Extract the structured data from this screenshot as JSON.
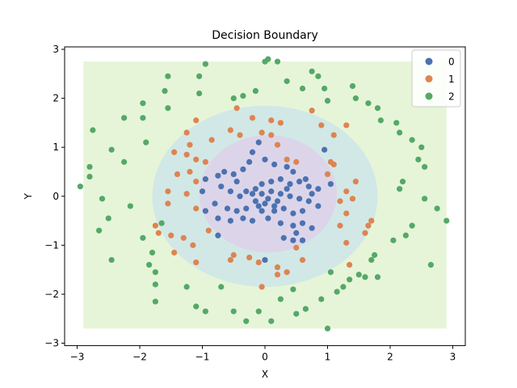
{
  "chart_data": {
    "type": "scatter",
    "title": "Decision Boundary",
    "xlabel": "X",
    "ylabel": "Y",
    "xlim": [
      -3.2,
      3.2
    ],
    "ylim": [
      -3.05,
      3.05
    ],
    "xticks": [
      -3,
      -2,
      -1,
      0,
      1,
      2,
      3
    ],
    "yticks": [
      -3,
      -2,
      -1,
      0,
      1,
      2,
      3
    ],
    "legend_position": "top-right",
    "grid": false,
    "decision_regions": [
      {
        "class": "2",
        "shape": "rect",
        "xmin": -2.9,
        "xmax": 2.9,
        "ymin": -2.7,
        "ymax": 2.75,
        "color": "#e6f5d8"
      },
      {
        "class": "1",
        "shape": "ellipse",
        "cx": 0.0,
        "cy": 0.0,
        "rx": 1.8,
        "ry": 1.85,
        "color": "#d2e8e6"
      },
      {
        "class": "0",
        "shape": "ellipse",
        "cx": 0.05,
        "cy": 0.05,
        "rx": 1.1,
        "ry": 1.2,
        "color": "#dcd5ea"
      }
    ],
    "series": [
      {
        "name": "0",
        "color": "#4c72b0",
        "points": [
          [
            -0.1,
            1.1
          ],
          [
            0.0,
            0.75
          ],
          [
            -0.2,
            0.9
          ],
          [
            0.15,
            0.65
          ],
          [
            0.35,
            0.6
          ],
          [
            0.45,
            0.5
          ],
          [
            -0.35,
            0.55
          ],
          [
            -0.5,
            0.45
          ],
          [
            -0.65,
            0.5
          ],
          [
            -0.75,
            0.42
          ],
          [
            -0.95,
            0.35
          ],
          [
            -0.7,
            0.2
          ],
          [
            -0.55,
            0.1
          ],
          [
            -0.4,
            0.0
          ],
          [
            -0.3,
            0.1
          ],
          [
            -0.15,
            0.15
          ],
          [
            -0.05,
            0.25
          ],
          [
            0.1,
            0.3
          ],
          [
            0.25,
            0.35
          ],
          [
            0.4,
            0.25
          ],
          [
            0.55,
            0.3
          ],
          [
            0.7,
            0.2
          ],
          [
            0.85,
            0.15
          ],
          [
            0.65,
            0.35
          ],
          [
            0.25,
            0.05
          ],
          [
            0.4,
            0.0
          ],
          [
            0.55,
            -0.05
          ],
          [
            0.7,
            -0.1
          ],
          [
            0.85,
            -0.2
          ],
          [
            0.6,
            -0.3
          ],
          [
            0.45,
            -0.35
          ],
          [
            0.3,
            -0.25
          ],
          [
            0.15,
            -0.2
          ],
          [
            0.0,
            -0.15
          ],
          [
            -0.15,
            -0.1
          ],
          [
            -0.3,
            -0.25
          ],
          [
            -0.45,
            -0.3
          ],
          [
            -0.6,
            -0.25
          ],
          [
            -0.8,
            -0.15
          ],
          [
            -0.95,
            -0.3
          ],
          [
            -0.75,
            -0.45
          ],
          [
            -0.55,
            -0.5
          ],
          [
            -0.35,
            -0.45
          ],
          [
            -0.2,
            -0.5
          ],
          [
            0.05,
            -0.45
          ],
          [
            0.25,
            -0.55
          ],
          [
            0.45,
            -0.6
          ],
          [
            0.6,
            -0.55
          ],
          [
            0.75,
            -0.65
          ],
          [
            0.5,
            -0.75
          ],
          [
            0.3,
            -0.85
          ],
          [
            0.45,
            -0.9
          ],
          [
            0.6,
            -0.9
          ],
          [
            -0.75,
            -0.8
          ],
          [
            -0.05,
            -0.3
          ],
          [
            0.05,
            -0.05
          ],
          [
            -0.05,
            0.05
          ],
          [
            0.1,
            0.1
          ],
          [
            -0.2,
            0.05
          ],
          [
            0.2,
            -0.1
          ],
          [
            -0.1,
            -0.2
          ],
          [
            0.15,
            -0.3
          ],
          [
            -1.0,
            0.1
          ],
          [
            1.05,
            0.25
          ],
          [
            0.95,
            0.95
          ],
          [
            0.0,
            -1.3
          ],
          [
            -0.25,
            0.7
          ],
          [
            -0.45,
            0.3
          ],
          [
            0.35,
            0.15
          ],
          [
            0.75,
            0.05
          ]
        ]
      },
      {
        "name": "1",
        "color": "#dd8452",
        "points": [
          [
            -0.45,
            1.8
          ],
          [
            -0.2,
            1.6
          ],
          [
            0.1,
            1.55
          ],
          [
            0.25,
            1.5
          ],
          [
            0.1,
            1.25
          ],
          [
            -0.05,
            1.3
          ],
          [
            0.75,
            1.75
          ],
          [
            0.9,
            1.45
          ],
          [
            1.3,
            1.45
          ],
          [
            1.1,
            1.25
          ],
          [
            -1.1,
            1.55
          ],
          [
            -1.25,
            1.3
          ],
          [
            -1.2,
            1.05
          ],
          [
            -0.85,
            1.15
          ],
          [
            -0.55,
            1.35
          ],
          [
            -0.4,
            1.25
          ],
          [
            -1.25,
            0.85
          ],
          [
            -1.1,
            0.75
          ],
          [
            -1.2,
            0.5
          ],
          [
            -1.4,
            0.45
          ],
          [
            -1.1,
            0.3
          ],
          [
            -1.55,
            0.1
          ],
          [
            -1.25,
            0.05
          ],
          [
            -1.55,
            -0.15
          ],
          [
            -1.1,
            -0.25
          ],
          [
            -1.75,
            -0.6
          ],
          [
            -1.7,
            -0.75
          ],
          [
            -1.5,
            -0.8
          ],
          [
            -1.3,
            -0.85
          ],
          [
            -0.9,
            -0.7
          ],
          [
            -1.45,
            -1.15
          ],
          [
            -1.15,
            -1.0
          ],
          [
            -1.1,
            -1.35
          ],
          [
            -0.5,
            -1.2
          ],
          [
            -0.55,
            -1.3
          ],
          [
            -0.25,
            -1.25
          ],
          [
            -0.1,
            -1.35
          ],
          [
            0.2,
            -1.45
          ],
          [
            0.35,
            -1.55
          ],
          [
            0.6,
            -1.3
          ],
          [
            0.5,
            -1.05
          ],
          [
            0.2,
            -1.6
          ],
          [
            -0.05,
            -1.85
          ],
          [
            1.3,
            -0.95
          ],
          [
            1.2,
            -0.6
          ],
          [
            1.3,
            -0.35
          ],
          [
            1.35,
            -1.4
          ],
          [
            1.6,
            -0.75
          ],
          [
            1.65,
            -0.6
          ],
          [
            1.7,
            -0.5
          ],
          [
            1.45,
            0.3
          ],
          [
            1.3,
            0.1
          ],
          [
            1.4,
            -0.05
          ],
          [
            1.2,
            -0.1
          ],
          [
            1.1,
            0.65
          ],
          [
            1.05,
            0.7
          ],
          [
            0.5,
            0.7
          ],
          [
            0.35,
            0.75
          ],
          [
            1.0,
            0.45
          ],
          [
            -0.95,
            0.7
          ],
          [
            -1.45,
            0.9
          ],
          [
            0.2,
            1.05
          ]
        ]
      },
      {
        "name": "2",
        "color": "#55a868",
        "points": [
          [
            -2.95,
            0.2
          ],
          [
            -2.8,
            0.6
          ],
          [
            -2.8,
            0.4
          ],
          [
            -2.75,
            1.35
          ],
          [
            -2.6,
            -0.05
          ],
          [
            -2.65,
            -0.7
          ],
          [
            -2.5,
            -0.45
          ],
          [
            -2.45,
            0.95
          ],
          [
            -2.45,
            -1.3
          ],
          [
            -2.25,
            0.7
          ],
          [
            -2.25,
            1.6
          ],
          [
            -2.15,
            -0.2
          ],
          [
            -1.95,
            1.9
          ],
          [
            -1.95,
            1.6
          ],
          [
            -1.95,
            -0.85
          ],
          [
            -1.9,
            1.1
          ],
          [
            -1.85,
            -1.4
          ],
          [
            -1.8,
            -1.15
          ],
          [
            -1.75,
            -1.55
          ],
          [
            -1.75,
            -1.8
          ],
          [
            -1.75,
            -2.15
          ],
          [
            -1.65,
            -0.55
          ],
          [
            -1.6,
            2.15
          ],
          [
            -1.55,
            1.8
          ],
          [
            -1.55,
            2.45
          ],
          [
            -1.25,
            -1.85
          ],
          [
            -1.1,
            -2.25
          ],
          [
            -0.95,
            -2.35
          ],
          [
            -1.05,
            2.45
          ],
          [
            -1.05,
            2.1
          ],
          [
            -0.95,
            2.7
          ],
          [
            -0.7,
            -1.85
          ],
          [
            -0.5,
            -2.35
          ],
          [
            -0.3,
            -2.55
          ],
          [
            -0.5,
            2.0
          ],
          [
            -0.35,
            2.05
          ],
          [
            -0.15,
            2.15
          ],
          [
            -0.1,
            -2.35
          ],
          [
            0.0,
            2.75
          ],
          [
            0.05,
            2.8
          ],
          [
            0.1,
            -2.55
          ],
          [
            0.2,
            2.75
          ],
          [
            0.25,
            -2.1
          ],
          [
            0.35,
            2.35
          ],
          [
            0.45,
            -1.9
          ],
          [
            0.5,
            -2.4
          ],
          [
            0.6,
            2.2
          ],
          [
            0.65,
            -2.3
          ],
          [
            0.75,
            2.55
          ],
          [
            0.85,
            2.45
          ],
          [
            0.95,
            2.2
          ],
          [
            1.0,
            1.95
          ],
          [
            0.9,
            -2.1
          ],
          [
            1.0,
            -2.7
          ],
          [
            1.05,
            -1.55
          ],
          [
            1.15,
            -1.95
          ],
          [
            1.25,
            -1.85
          ],
          [
            1.35,
            -1.7
          ],
          [
            1.4,
            2.25
          ],
          [
            1.45,
            2.0
          ],
          [
            1.5,
            -1.6
          ],
          [
            1.6,
            -1.65
          ],
          [
            1.65,
            1.9
          ],
          [
            1.7,
            -1.3
          ],
          [
            1.75,
            -1.2
          ],
          [
            1.8,
            1.8
          ],
          [
            1.8,
            -1.65
          ],
          [
            1.85,
            1.55
          ],
          [
            2.05,
            -0.9
          ],
          [
            2.1,
            1.5
          ],
          [
            2.15,
            1.3
          ],
          [
            2.15,
            0.15
          ],
          [
            2.2,
            0.3
          ],
          [
            2.25,
            -0.8
          ],
          [
            2.35,
            1.15
          ],
          [
            2.35,
            -0.6
          ],
          [
            2.45,
            0.75
          ],
          [
            2.5,
            1.0
          ],
          [
            2.55,
            0.6
          ],
          [
            2.55,
            -0.05
          ],
          [
            2.65,
            -1.4
          ],
          [
            2.75,
            -0.25
          ],
          [
            2.9,
            -0.5
          ]
        ]
      }
    ]
  }
}
